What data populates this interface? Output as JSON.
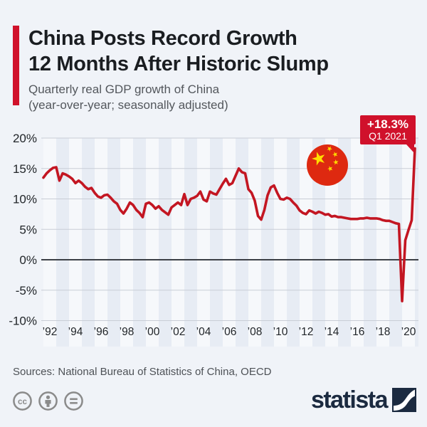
{
  "page": {
    "background": "#f0f3f8"
  },
  "header": {
    "title_line1": "China Posts Record Growth",
    "title_line2": "12 Months After Historic Slump",
    "subtitle_line1": "Quarterly real GDP growth of China",
    "subtitle_line2": "(year-over-year; seasonally adjusted)",
    "accent_color": "#d0112b"
  },
  "annotation": {
    "value": "+18.3%",
    "period": "Q1 2021",
    "background": "#d0112b",
    "text_color": "#ffffff"
  },
  "chart_data": {
    "type": "line",
    "title": "Quarterly real GDP growth of China (year-over-year; seasonally adjusted)",
    "frequency": "quarterly",
    "x_start": "1992 Q1",
    "x_end": "2021 Q1",
    "series": [
      {
        "name": "China real GDP growth, % year-over-year",
        "values": [
          13.5,
          14.2,
          14.7,
          15.1,
          15.2,
          13.0,
          14.2,
          14.0,
          13.7,
          13.3,
          12.6,
          13.0,
          12.6,
          12.0,
          11.6,
          11.8,
          11.0,
          10.4,
          10.2,
          10.6,
          10.7,
          10.2,
          9.6,
          9.2,
          8.2,
          7.6,
          8.4,
          9.4,
          9.0,
          8.2,
          7.7,
          7.0,
          9.2,
          9.4,
          9.0,
          8.4,
          8.8,
          8.2,
          7.8,
          7.4,
          8.6,
          9.0,
          9.4,
          9.0,
          10.8,
          9.0,
          10.0,
          10.2,
          10.5,
          11.2,
          9.9,
          9.6,
          11.2,
          10.9,
          10.7,
          11.6,
          12.5,
          13.3,
          12.3,
          12.6,
          13.8,
          15.0,
          14.4,
          14.2,
          11.6,
          11.0,
          9.7,
          7.2,
          6.6,
          8.2,
          10.6,
          11.9,
          12.2,
          11.0,
          10.0,
          9.9,
          10.2,
          10.0,
          9.4,
          8.9,
          8.1,
          7.7,
          7.5,
          8.1,
          7.9,
          7.6,
          7.9,
          7.7,
          7.4,
          7.5,
          7.1,
          7.2,
          7.0,
          7.0,
          6.9,
          6.8,
          6.7,
          6.7,
          6.7,
          6.8,
          6.8,
          6.9,
          6.8,
          6.8,
          6.8,
          6.7,
          6.5,
          6.4,
          6.4,
          6.2,
          6.0,
          5.9,
          -6.8,
          3.2,
          4.9,
          6.5,
          18.3
        ]
      }
    ],
    "highlight_last_point": {
      "label": "+18.3%",
      "period": "Q1 2021"
    },
    "ylim": [
      -10,
      20
    ],
    "ytick_values": [
      20,
      15,
      10,
      5,
      0,
      -5,
      -10
    ],
    "ytick_labels": [
      "20%",
      "15%",
      "10%",
      "5%",
      "0%",
      "-5%",
      "-10%"
    ],
    "xtick_years": [
      1992,
      1994,
      1996,
      1998,
      2000,
      2002,
      2004,
      2006,
      2008,
      2010,
      2012,
      2014,
      2016,
      2018,
      2020
    ],
    "xtick_labels": [
      "’92",
      "’94",
      "’96",
      "’98",
      "’00",
      "’02",
      "’04",
      "’06",
      "’08",
      "’10",
      "’12",
      "’14",
      "’16",
      "’18",
      "’20"
    ],
    "grid": true,
    "zero_line": true,
    "legend": "none",
    "line_color": "#c31622",
    "grid_color": "#c9cdd6",
    "zero_line_color": "#3c4046",
    "band_dark_color": "#e7ecf4",
    "band_light_color": "#f6f8fb",
    "tick_color": "#212529"
  },
  "flag": {
    "name": "Flag of China",
    "red": "#de2910",
    "yellow": "#ffde00"
  },
  "footer": {
    "sources": "Sources: National Bureau of Statistics of China, OECD",
    "license": [
      "cc",
      "attribution",
      "no-derivatives"
    ],
    "license_color": "#8b8b8b",
    "brand": "statista",
    "brand_color": "#1b2a40"
  }
}
